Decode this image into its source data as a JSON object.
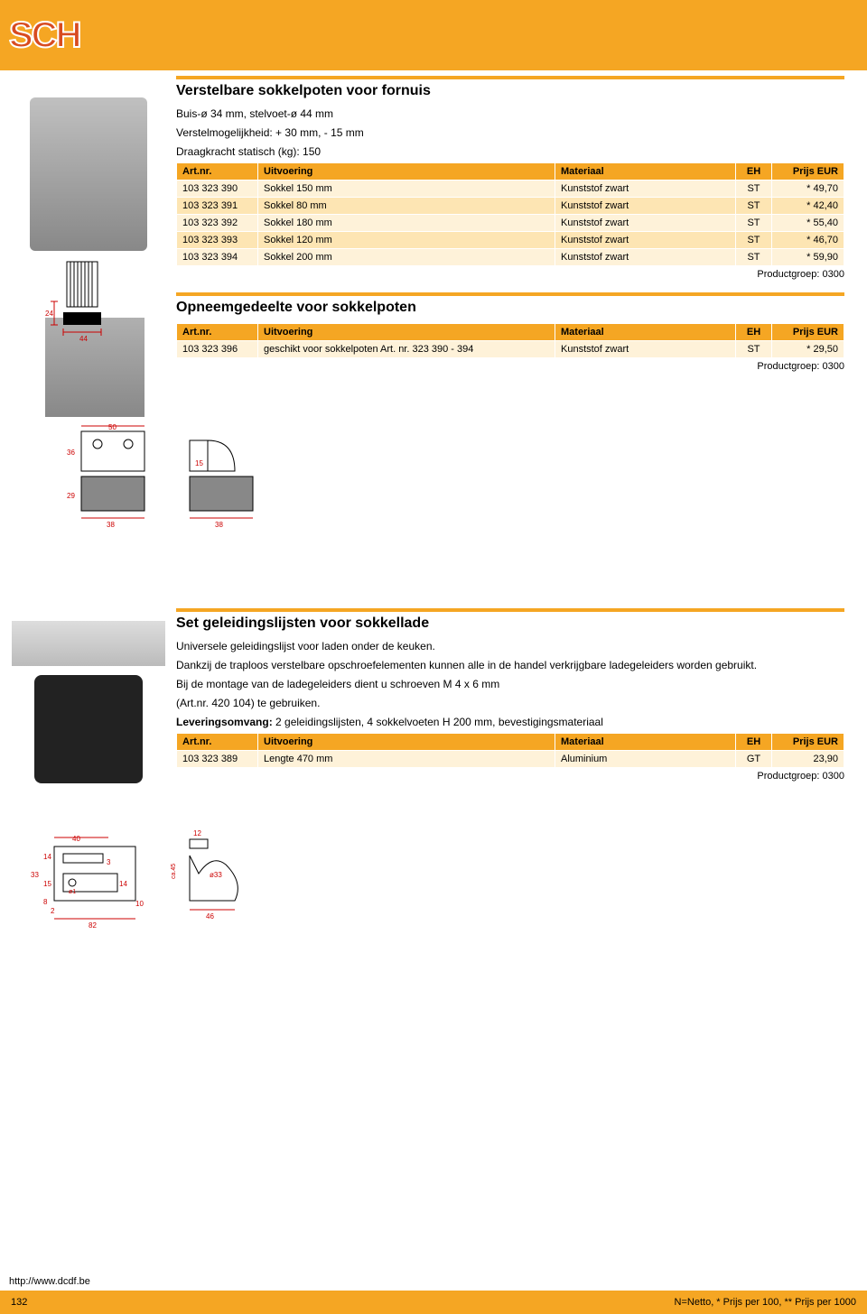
{
  "header": {
    "logo": "SCH"
  },
  "section1": {
    "title": "Verstelbare sokkelpoten voor fornuis",
    "desc1": "Buis-ø 34 mm, stelvoet-ø 44 mm",
    "desc2": "Verstelmogelijkheid: + 30 mm, - 15 mm",
    "desc3": "Draagkracht statisch (kg): 150",
    "table": {
      "headers": {
        "art": "Art.nr.",
        "uit": "Uitvoering",
        "mat": "Materiaal",
        "eh": "EH",
        "prijs": "Prijs EUR"
      },
      "rows": [
        {
          "art": "103 323 390",
          "uit": "Sokkel 150 mm",
          "mat": "Kunststof zwart",
          "eh": "ST",
          "prijs": "* 49,70"
        },
        {
          "art": "103 323 391",
          "uit": "Sokkel 80 mm",
          "mat": "Kunststof zwart",
          "eh": "ST",
          "prijs": "* 42,40"
        },
        {
          "art": "103 323 392",
          "uit": "Sokkel 180 mm",
          "mat": "Kunststof zwart",
          "eh": "ST",
          "prijs": "* 55,40"
        },
        {
          "art": "103 323 393",
          "uit": "Sokkel 120 mm",
          "mat": "Kunststof zwart",
          "eh": "ST",
          "prijs": "* 46,70"
        },
        {
          "art": "103 323 394",
          "uit": "Sokkel 200 mm",
          "mat": "Kunststof zwart",
          "eh": "ST",
          "prijs": "* 59,90"
        }
      ]
    },
    "pgroup": "Productgroep: 0300"
  },
  "section2": {
    "title": "Opneemgedeelte voor sokkelpoten",
    "table": {
      "headers": {
        "art": "Art.nr.",
        "uit": "Uitvoering",
        "mat": "Materiaal",
        "eh": "EH",
        "prijs": "Prijs EUR"
      },
      "rows": [
        {
          "art": "103 323 396",
          "uit": "geschikt voor sokkelpoten Art. nr. 323 390 - 394",
          "mat": "Kunststof zwart",
          "eh": "ST",
          "prijs": "* 29,50"
        }
      ]
    },
    "pgroup": "Productgroep: 0300"
  },
  "section3": {
    "title": "Set geleidingslijsten voor sokkellade",
    "desc1": "Universele geleidingslijst voor laden onder de keuken.",
    "desc2": "Dankzij de traploos verstelbare opschroefelementen kunnen alle in de handel verkrijgbare ladegeleiders worden gebruikt.",
    "desc3": "Bij de montage van de ladegeleiders dient u schroeven M 4 x 6 mm",
    "desc4": "(Art.nr. 420 104) te gebruiken.",
    "desc5_label": "Leveringsomvang:",
    "desc5_rest": " 2 geleidingslijsten, 4 sokkelvoeten H 200 mm, bevestigingsmateriaal",
    "table": {
      "headers": {
        "art": "Art.nr.",
        "uit": "Uitvoering",
        "mat": "Materiaal",
        "eh": "EH",
        "prijs": "Prijs EUR"
      },
      "rows": [
        {
          "art": "103 323 389",
          "uit": "Lengte 470 mm",
          "mat": "Aluminium",
          "eh": "GT",
          "prijs": "23,90"
        }
      ]
    },
    "pgroup": "Productgroep: 0300"
  },
  "diagrams": {
    "s1_dim_bottom": "44",
    "s1_dim_side": "24",
    "s2_dim_width": "50",
    "s2_dim_h1": "36",
    "s2_dim_h2": "29",
    "s2_dim_b1": "38",
    "s2_dim_b2": "38",
    "s2_dim_15": "15",
    "s3_dim_40": "40",
    "s3_dim_14a": "14",
    "s3_dim_3": "3",
    "s3_dim_33h": "33",
    "s3_dim_15": "15",
    "s3_dim_o1": "ø1",
    "s3_dim_14b": "14",
    "s3_dim_8": "8",
    "s3_dim_2": "2",
    "s3_dim_10": "10",
    "s3_dim_82": "82",
    "s3_dim_12": "12",
    "s3_dim_ca45": "ca.45",
    "s3_dim_o33": "ø33",
    "s3_dim_46": "46"
  },
  "footer": {
    "url": "http://www.dcdf.be",
    "page": "132",
    "note": "N=Netto, * Prijs per 100, ** Prijs per 1000"
  },
  "colors": {
    "accent": "#f5a623",
    "row_light": "#fef2d9",
    "row_dark": "#fde5b3",
    "dim_line": "#cc0000",
    "text": "#000000"
  }
}
